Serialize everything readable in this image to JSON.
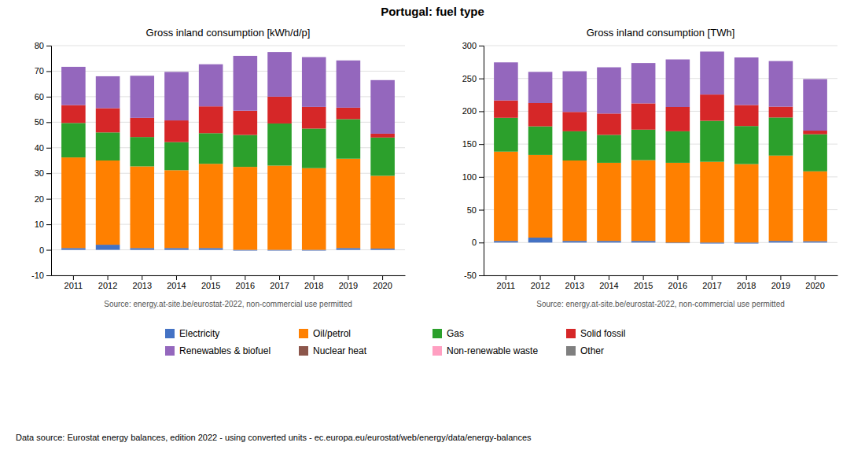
{
  "title": "Portugal: fuel type",
  "annotations": [
    "Data source: Eurostat energy balances, edition 2022 - using converted units - ec.europa.eu/eurostat/web/energy/data/energy-balances"
  ],
  "legend": "bottom",
  "chart_data": [
    {
      "type": "bar",
      "title": "Gross inland consumption [kWh/d/p]",
      "categories": [
        "2011",
        "2012",
        "2013",
        "2014",
        "2015",
        "2016",
        "2017",
        "2018",
        "2019",
        "2020"
      ],
      "series": [
        {
          "name": "Electricity",
          "color": "#4472c4",
          "values": [
            0.7,
            2.0,
            0.7,
            0.7,
            0.7,
            -0.3,
            -0.3,
            -0.3,
            0.7,
            0.5
          ]
        },
        {
          "name": "Oil/petrol",
          "color": "#ff8000",
          "values": [
            35.5,
            33.0,
            32.0,
            30.5,
            33.0,
            32.5,
            33.0,
            32.0,
            35.0,
            28.5
          ]
        },
        {
          "name": "Gas",
          "color": "#2ca02c",
          "values": [
            13.5,
            11.0,
            11.5,
            11.0,
            12.0,
            12.5,
            16.5,
            15.5,
            15.5,
            15.0
          ]
        },
        {
          "name": "Solid fossil",
          "color": "#d62728",
          "values": [
            7.0,
            9.5,
            7.5,
            8.5,
            10.5,
            9.5,
            10.5,
            8.5,
            4.5,
            1.5
          ]
        },
        {
          "name": "Renewables & biofuel",
          "color": "#9467bd",
          "values": [
            15.0,
            12.5,
            16.5,
            19.0,
            16.5,
            21.5,
            17.5,
            19.5,
            18.5,
            21.0
          ]
        },
        {
          "name": "Nuclear heat",
          "color": "#8c564b",
          "values": [
            0.0,
            0.0,
            0.0,
            0.0,
            0.0,
            0.0,
            0.0,
            0.0,
            0.0,
            0.0
          ]
        },
        {
          "name": "Non-renewable waste",
          "color": "#ff9fc1",
          "values": [
            0.0,
            0.0,
            0.0,
            0.0,
            0.0,
            0.0,
            0.0,
            0.0,
            0.0,
            0.0
          ]
        },
        {
          "name": "Other",
          "color": "#7f7f7f",
          "values": [
            0.0,
            0.0,
            0.0,
            0.0,
            0.0,
            0.0,
            0.0,
            0.0,
            0.0,
            0.0
          ]
        }
      ],
      "ylim": [
        -10,
        80
      ],
      "yticks": [
        -10,
        0,
        10,
        20,
        30,
        40,
        50,
        60,
        70,
        80
      ],
      "grid": true,
      "stacked": true,
      "annotations": [
        "Source: energy.at-site.be/eurostat-2022, non-commercial use permitted"
      ]
    },
    {
      "type": "bar",
      "title": "Gross inland consumption [TWh]",
      "categories": [
        "2011",
        "2012",
        "2013",
        "2014",
        "2015",
        "2016",
        "2017",
        "2018",
        "2019",
        "2020"
      ],
      "series": [
        {
          "name": "Electricity",
          "color": "#4472c4",
          "values": [
            2.5,
            7.5,
            2.5,
            2.5,
            2.5,
            -1.0,
            -1.5,
            -1.5,
            2.5,
            2.0
          ]
        },
        {
          "name": "Oil/petrol",
          "color": "#ff8000",
          "values": [
            136.0,
            126.0,
            122.5,
            119.0,
            123.0,
            121.5,
            123.0,
            119.5,
            130.0,
            106.5
          ]
        },
        {
          "name": "Gas",
          "color": "#2ca02c",
          "values": [
            51.5,
            43.5,
            44.5,
            42.5,
            46.5,
            48.0,
            62.5,
            58.0,
            58.0,
            56.5
          ]
        },
        {
          "name": "Solid fossil",
          "color": "#d62728",
          "values": [
            26.5,
            35.5,
            29.5,
            32.5,
            40.0,
            37.0,
            40.0,
            32.0,
            16.5,
            5.5
          ]
        },
        {
          "name": "Renewables & biofuel",
          "color": "#9467bd",
          "values": [
            58.0,
            47.5,
            62.0,
            70.5,
            61.5,
            72.5,
            65.5,
            72.5,
            69.5,
            78.5
          ]
        },
        {
          "name": "Nuclear heat",
          "color": "#8c564b",
          "values": [
            0.0,
            0.0,
            0.0,
            0.0,
            0.0,
            0.0,
            0.0,
            0.0,
            0.0,
            0.0
          ]
        },
        {
          "name": "Non-renewable waste",
          "color": "#ff9fc1",
          "values": [
            0.0,
            0.0,
            0.0,
            0.0,
            0.0,
            0.0,
            0.0,
            0.0,
            0.0,
            0.0
          ]
        },
        {
          "name": "Other",
          "color": "#7f7f7f",
          "values": [
            0.0,
            0.0,
            0.0,
            0.0,
            0.0,
            0.0,
            0.0,
            0.0,
            0.0,
            0.0
          ]
        }
      ],
      "ylim": [
        -50,
        300
      ],
      "yticks": [
        -50,
        0,
        50,
        100,
        150,
        200,
        250,
        300
      ],
      "grid": true,
      "stacked": true,
      "annotations": [
        "Source: energy.at-site.be/eurostat-2022, non-commercial use permitted"
      ]
    }
  ]
}
